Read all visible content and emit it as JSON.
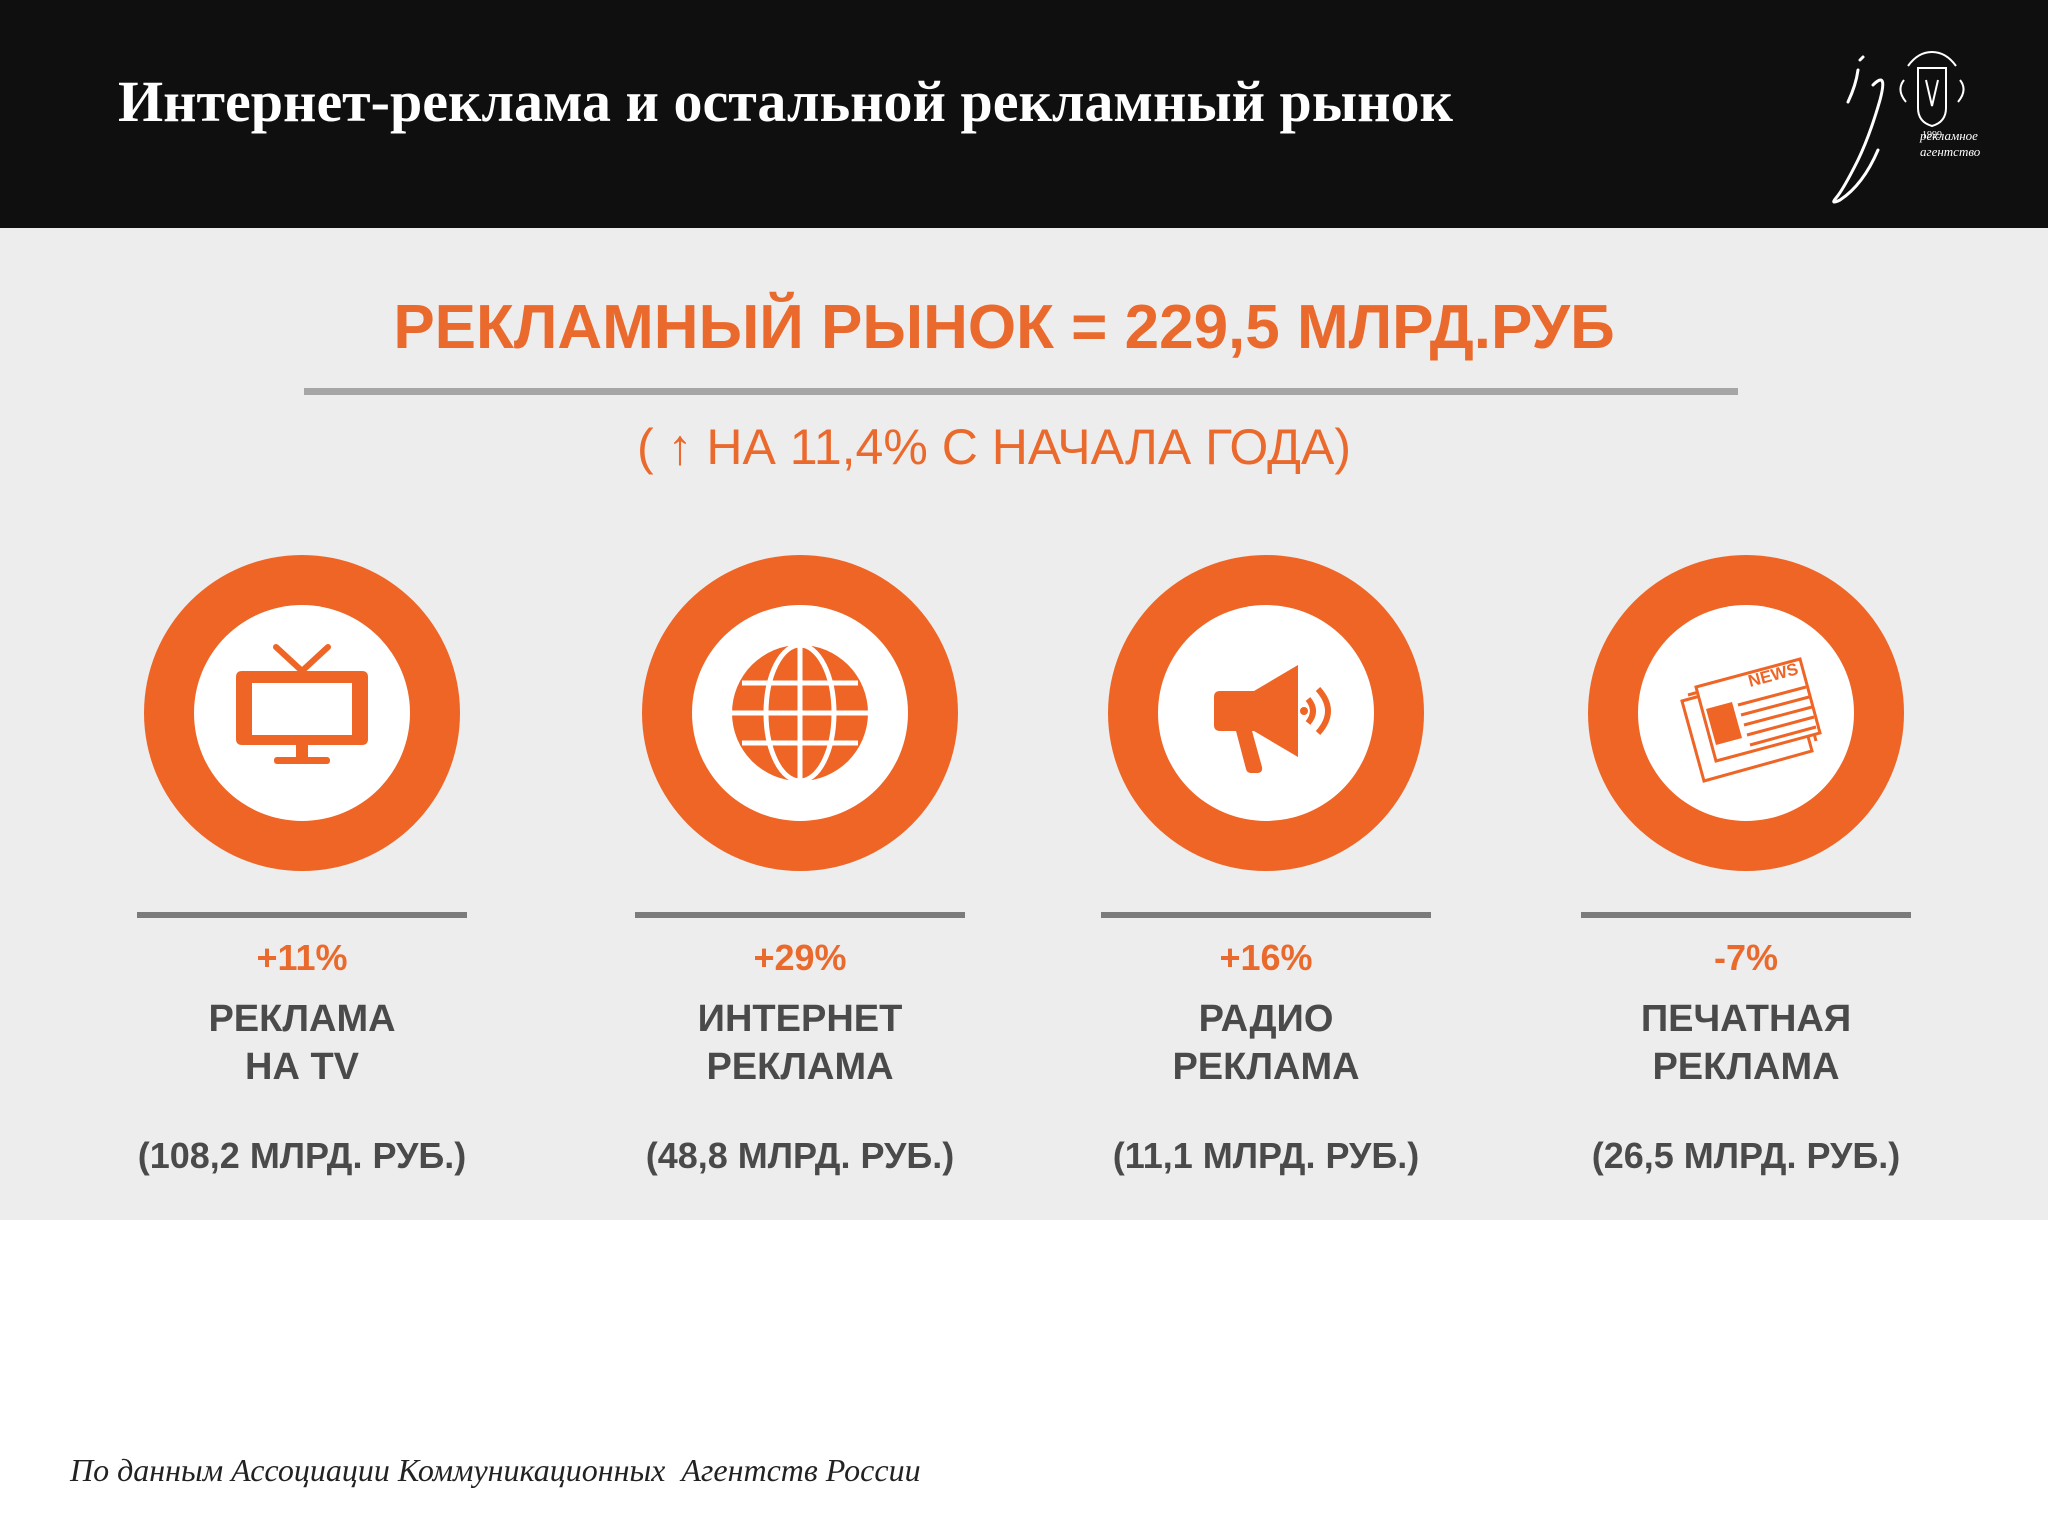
{
  "header": {
    "title": "Интернет-реклама и остальной рекламный рынок",
    "logo": {
      "monogram": "ig",
      "year": "1999",
      "line1": "рекламное",
      "line2": "агентство"
    }
  },
  "infographic": {
    "headline": "РЕКЛАМНЫЙ РЫНОК = 229,5 МЛРД.РУБ",
    "subline": "( ↑ НА 11,4% С НАЧАЛА ГОДА)",
    "segments": [
      {
        "icon": "tv-icon",
        "change": "+11%",
        "label_line1": "РЕКЛАМА",
        "label_line2": "НА TV",
        "amount": "(108,2 МЛРД. РУБ.)"
      },
      {
        "icon": "globe-icon",
        "change": "+29%",
        "label_line1": "ИНТЕРНЕТ",
        "label_line2": "РЕКЛАМА",
        "amount": "(48,8 МЛРД. РУБ.)"
      },
      {
        "icon": "megaphone-icon",
        "change": "+16%",
        "label_line1": "РАДИО",
        "label_line2": "РЕКЛАМА",
        "amount": "(11,1 МЛРД. РУБ.)"
      },
      {
        "icon": "newspaper-icon",
        "change": "-7%",
        "label_line1": "ПЕЧАТНАЯ",
        "label_line2": "РЕКЛАМА",
        "amount": "(26,5 МЛРД. РУБ.)"
      }
    ],
    "icon_text_news": "NEWS"
  },
  "footer": {
    "source": "По данным Ассоциации Коммуникационных  Агентств России"
  },
  "colors": {
    "accent": "#ee6526",
    "header_bg": "#0f0f0f",
    "panel_bg": "#eeeded",
    "text_dark": "#4a4a4a"
  }
}
